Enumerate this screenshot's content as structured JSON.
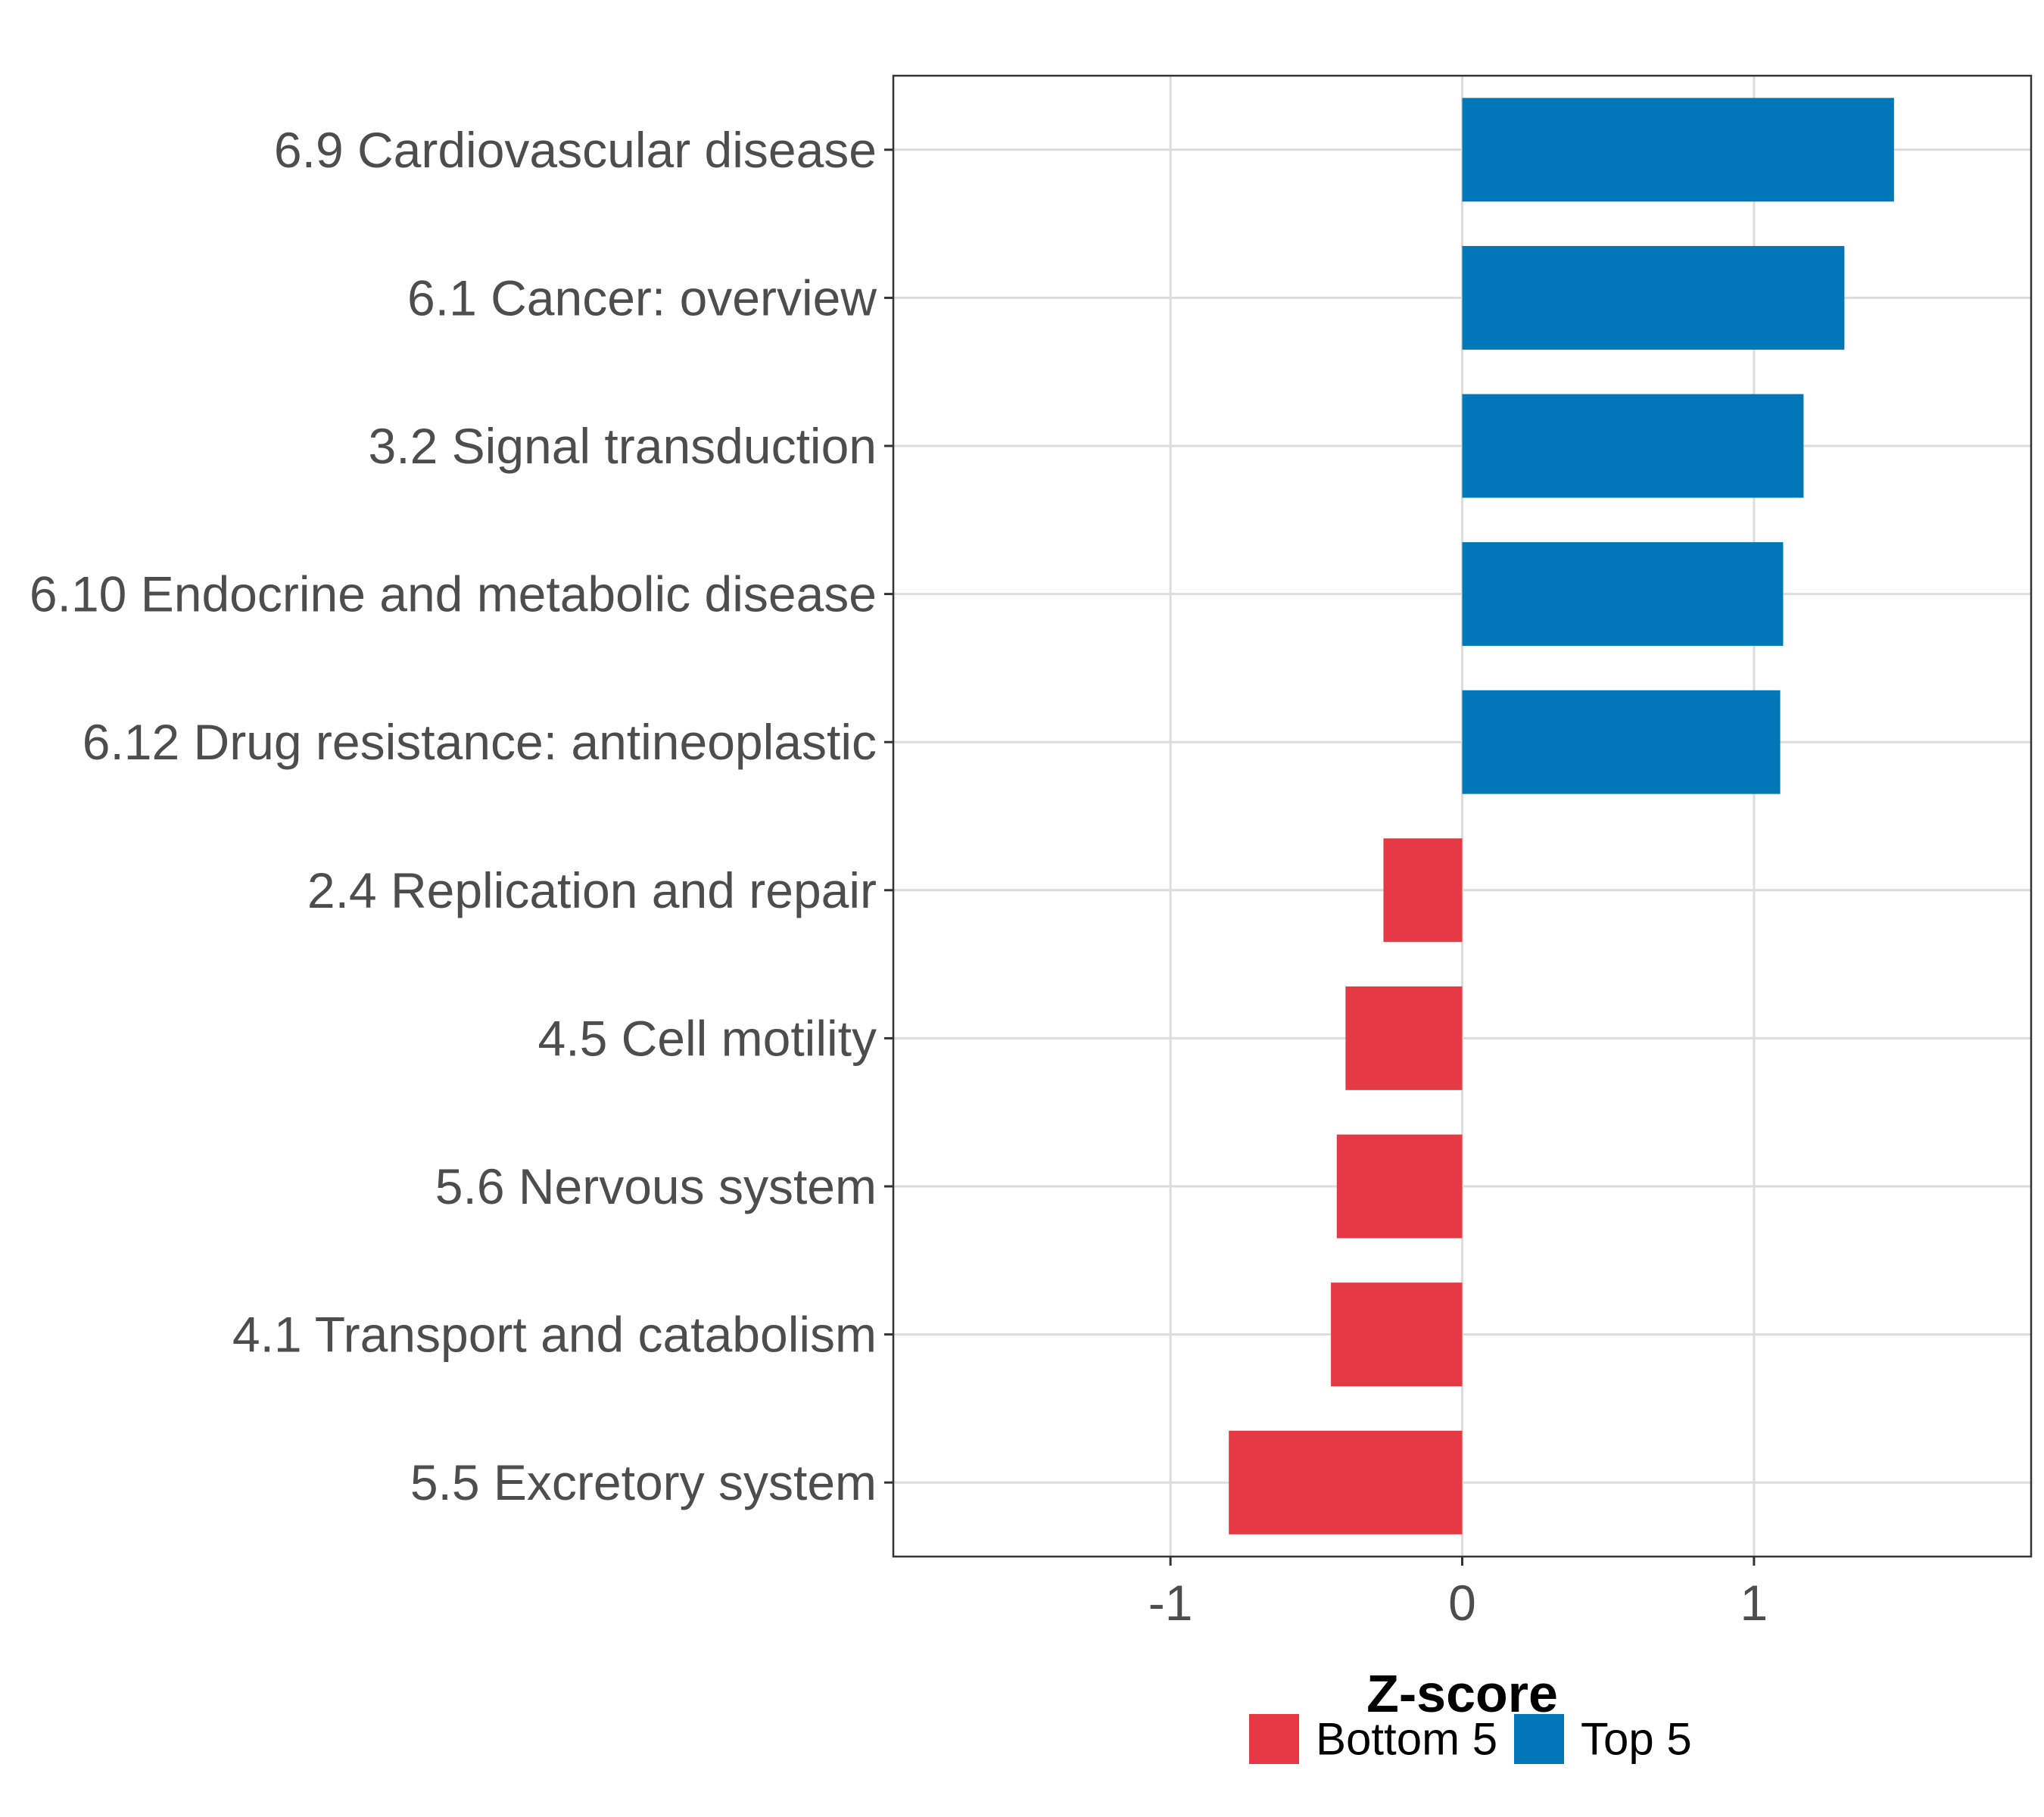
{
  "chart_data": {
    "type": "bar",
    "orientation": "horizontal",
    "categories": [
      "6.9 Cardiovascular disease",
      "6.1 Cancer: overview",
      "3.2 Signal transduction",
      "6.10 Endocrine and metabolic disease",
      "6.12 Drug resistance: antineoplastic",
      "2.4 Replication and repair",
      "4.5 Cell motility",
      "5.6 Nervous system",
      "4.1 Transport and catabolism",
      "5.5 Excretory system"
    ],
    "values": [
      1.48,
      1.31,
      1.17,
      1.1,
      1.09,
      -0.27,
      -0.4,
      -0.43,
      -0.45,
      -0.8
    ],
    "groups": [
      "Top 5",
      "Top 5",
      "Top 5",
      "Top 5",
      "Top 5",
      "Bottom 5",
      "Bottom 5",
      "Bottom 5",
      "Bottom 5",
      "Bottom 5"
    ],
    "xlabel": "Z-score",
    "ylabel": "",
    "xlim": [
      -1.95,
      1.95
    ],
    "xticks": [
      -1,
      0,
      1
    ],
    "xtick_labels": [
      "-1",
      "0",
      "1"
    ],
    "grid": true,
    "legend": {
      "position": "bottom",
      "items": [
        {
          "label": "Bottom 5",
          "color": "#E63946"
        },
        {
          "label": "Top 5",
          "color": "#0077B6"
        }
      ]
    }
  }
}
